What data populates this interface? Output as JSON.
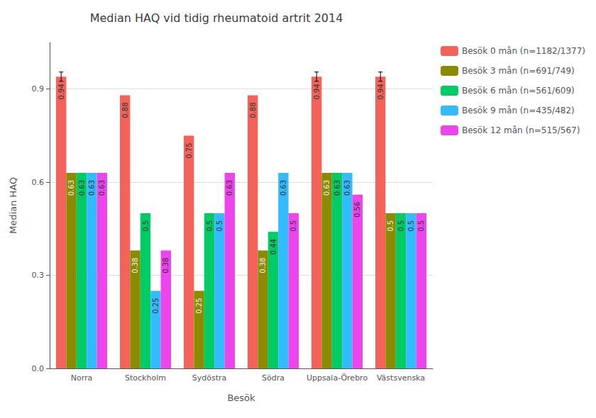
{
  "chart_data": {
    "type": "bar",
    "title": "Median HAQ vid tidig rheumatoid artrit 2014",
    "xlabel": "Besök",
    "ylabel": "Median HAQ",
    "categories": [
      "Norra",
      "Stockholm",
      "Sydöstra",
      "Södra",
      "Uppsala-Örebro",
      "Västsvenska"
    ],
    "series": [
      {
        "name": "Besök 0 mån (n=1182/1377)",
        "color": "#F4625A",
        "values": [
          0.94,
          0.88,
          0.75,
          0.88,
          0.94,
          0.94
        ],
        "error": [
          0.015,
          0.0,
          0.0,
          0.0,
          0.015,
          0.015
        ]
      },
      {
        "name": "Besök 3 mån (n=691/749)",
        "color": "#8B8B00",
        "values": [
          0.63,
          0.38,
          0.25,
          0.38,
          0.63,
          0.5
        ],
        "error": [
          0.0,
          0.0,
          0.0,
          0.0,
          0.0,
          0.0
        ]
      },
      {
        "name": "Besök 6 mån (n=561/609)",
        "color": "#00CC66",
        "values": [
          0.63,
          0.5,
          0.5,
          0.44,
          0.63,
          0.5
        ],
        "error": [
          0.0,
          0.0,
          0.0,
          0.0,
          0.0,
          0.0
        ]
      },
      {
        "name": "Besök 9 mån (n=435/482)",
        "color": "#33BBFF",
        "values": [
          0.63,
          0.25,
          0.5,
          0.63,
          0.63,
          0.5
        ],
        "error": [
          0.0,
          0.0,
          0.0,
          0.0,
          0.0,
          0.0
        ]
      },
      {
        "name": "Besök 12 mån (n=515/567)",
        "color": "#EE44EE",
        "values": [
          0.63,
          0.38,
          0.63,
          0.5,
          0.56,
          0.5
        ],
        "error": [
          0.0,
          0.0,
          0.0,
          0.0,
          0.0,
          0.0
        ]
      }
    ],
    "ylim": [
      0,
      1.05
    ],
    "yticks": [
      {
        "value": 0,
        "label": "0.0"
      },
      0.3,
      0.6,
      0.9
    ],
    "grid": true,
    "legend": "right",
    "data_labels": true
  }
}
